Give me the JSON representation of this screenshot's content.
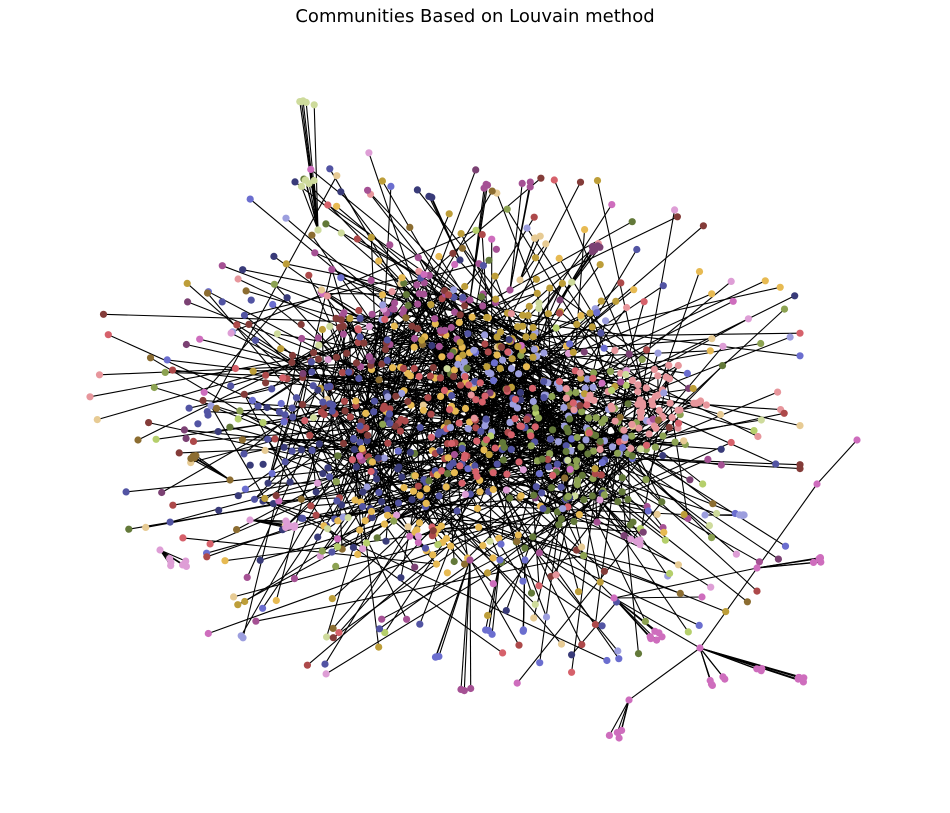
{
  "title": "Communities Based on Louvain method",
  "palette": [
    "#393b79",
    "#5254a3",
    "#6b6ecf",
    "#9c9ede",
    "#637939",
    "#8ca252",
    "#b5cf6b",
    "#cedb9c",
    "#8c6d31",
    "#bd9e39",
    "#e7ba52",
    "#e7cb94",
    "#843c39",
    "#ad494a",
    "#d6616b",
    "#e7969c",
    "#7b4173",
    "#a55194",
    "#ce6dbd",
    "#de9ed6"
  ],
  "edge_color": "#000000"
}
